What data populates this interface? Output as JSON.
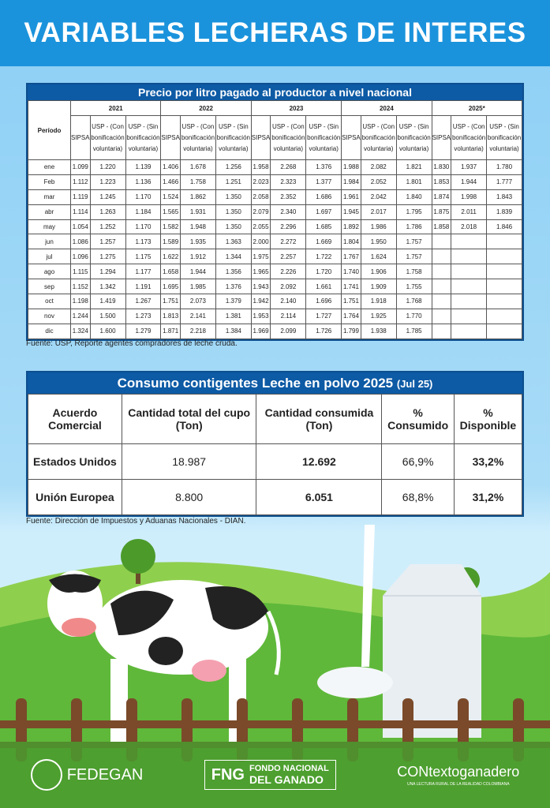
{
  "title": "VARIABLES LECHERAS DE INTERES",
  "price_table": {
    "title": "Precio por litro pagado al productor a nivel nacional",
    "period_label": "Período",
    "years": [
      "2021",
      "2022",
      "2023",
      "2024",
      "2025*"
    ],
    "subcols": [
      "SIPSA",
      "USP - (Con bonificación voluntaria)",
      "USP - (Sin bonificación voluntaria)"
    ],
    "rows": [
      {
        "m": "ene",
        "v": [
          "1.099",
          "1.220",
          "1.139",
          "1.406",
          "1.678",
          "1.256",
          "1.958",
          "2.268",
          "1.376",
          "1.988",
          "2.082",
          "1.821",
          "1.830",
          "1.937",
          "1.780"
        ]
      },
      {
        "m": "Feb",
        "v": [
          "1.112",
          "1.223",
          "1.136",
          "1.466",
          "1.758",
          "1.251",
          "2.023",
          "2.323",
          "1.377",
          "1.984",
          "2.052",
          "1.801",
          "1.853",
          "1.944",
          "1.777"
        ]
      },
      {
        "m": "mar",
        "v": [
          "1.119",
          "1.245",
          "1.170",
          "1.524",
          "1.862",
          "1.350",
          "2.058",
          "2.352",
          "1.686",
          "1.961",
          "2.042",
          "1.840",
          "1.874",
          "1.998",
          "1.843"
        ]
      },
      {
        "m": "abr",
        "v": [
          "1.114",
          "1.263",
          "1.184",
          "1.565",
          "1.931",
          "1.350",
          "2.079",
          "2.340",
          "1.697",
          "1.945",
          "2.017",
          "1.795",
          "1.875",
          "2.011",
          "1.839"
        ]
      },
      {
        "m": "may",
        "v": [
          "1.054",
          "1.252",
          "1.170",
          "1.582",
          "1.948",
          "1.350",
          "2.055",
          "2.296",
          "1.685",
          "1.892",
          "1.986",
          "1.786",
          "1.858",
          "2.018",
          "1.846"
        ]
      },
      {
        "m": "jun",
        "v": [
          "1.086",
          "1.257",
          "1.173",
          "1.589",
          "1.935",
          "1.363",
          "2.000",
          "2.272",
          "1.669",
          "1.804",
          "1.950",
          "1.757",
          "",
          "",
          ""
        ]
      },
      {
        "m": "jul",
        "v": [
          "1.096",
          "1.275",
          "1.175",
          "1.622",
          "1.912",
          "1.344",
          "1.975",
          "2.257",
          "1.722",
          "1.767",
          "1.624",
          "1.757",
          "",
          "",
          ""
        ]
      },
      {
        "m": "ago",
        "v": [
          "1.115",
          "1.294",
          "1.177",
          "1.658",
          "1.944",
          "1.356",
          "1.965",
          "2.226",
          "1.720",
          "1.740",
          "1.906",
          "1.758",
          "",
          "",
          ""
        ]
      },
      {
        "m": "sep",
        "v": [
          "1.152",
          "1.342",
          "1.191",
          "1.695",
          "1.985",
          "1.376",
          "1.943",
          "2.092",
          "1.661",
          "1.741",
          "1.909",
          "1.755",
          "",
          "",
          ""
        ]
      },
      {
        "m": "oct",
        "v": [
          "1.198",
          "1.419",
          "1.267",
          "1.751",
          "2.073",
          "1.379",
          "1.942",
          "2.140",
          "1.696",
          "1.751",
          "1.918",
          "1.768",
          "",
          "",
          ""
        ]
      },
      {
        "m": "nov",
        "v": [
          "1.244",
          "1.500",
          "1.273",
          "1.813",
          "2.141",
          "1.381",
          "1.953",
          "2.114",
          "1.727",
          "1.764",
          "1.925",
          "1.770",
          "",
          "",
          ""
        ]
      },
      {
        "m": "dic",
        "v": [
          "1.324",
          "1.600",
          "1.279",
          "1.871",
          "2.218",
          "1.384",
          "1.969",
          "2.099",
          "1.726",
          "1.799",
          "1.938",
          "1.785",
          "",
          "",
          ""
        ]
      }
    ],
    "source": "Fuente: USP, Reporte agentes compradores de leche cruda."
  },
  "quota_table": {
    "title": "Consumo contigentes Leche en polvo 2025",
    "title_note": "(Jul 25)",
    "headers": [
      "Acuerdo Comercial",
      "Cantidad total del cupo (Ton)",
      "Cantidad consumida (Ton)",
      "% Consumido",
      "% Disponible"
    ],
    "rows": [
      [
        "Estados Unidos",
        "18.987",
        "12.692",
        "66,9%",
        "33,2%"
      ],
      [
        "Unión Europea",
        "8.800",
        "6.051",
        "68,8%",
        "31,2%"
      ]
    ],
    "source": "Fuente: Dirección de Impuestos y Aduanas Nacionales - DIAN."
  },
  "footer": {
    "fedegan": "FEDEGAN",
    "fng_short": "FNG",
    "fng_line1": "FONDO NACIONAL",
    "fng_line2": "DEL GANADO",
    "contexto": "CONtextoganadero",
    "contexto_tag": "UNA LECTURA RURAL DE LA REALIDAD COLOMBIANA"
  },
  "colors": {
    "header": "#1b93dc",
    "table_title": "#0d5aa5",
    "grass": "#5fb83a"
  }
}
